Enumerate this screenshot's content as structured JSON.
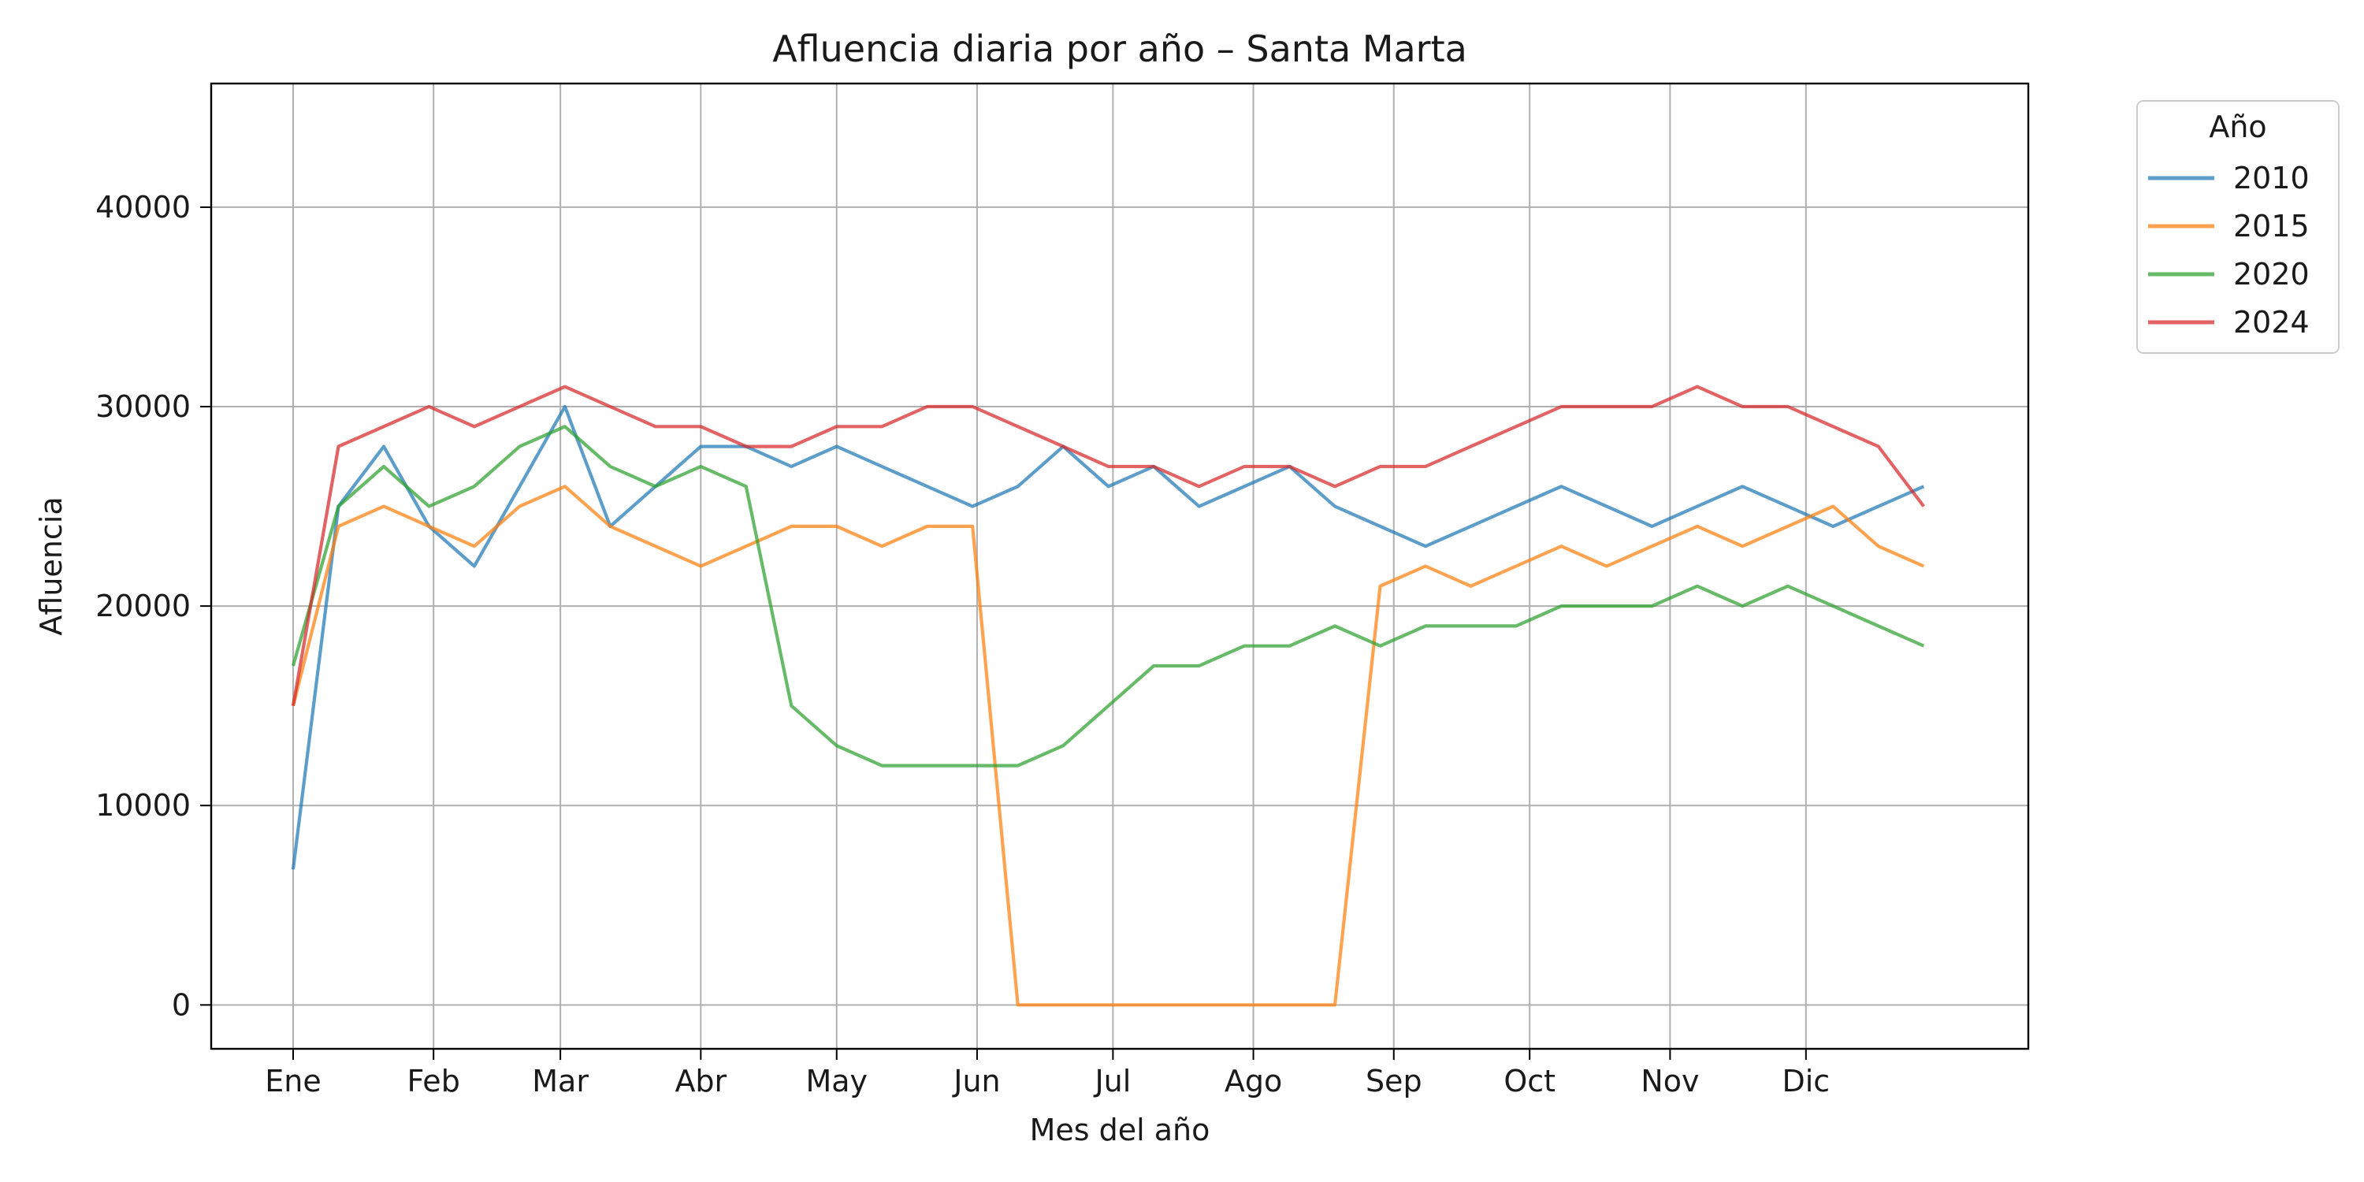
{
  "chart_data": {
    "type": "line",
    "title": "Afluencia diaria por año – Santa Marta",
    "xlabel": "Mes del año",
    "ylabel": "Afluencia",
    "x_range": [
      1,
      366
    ],
    "ylim": [
      -2200,
      46200
    ],
    "x_ticks": [
      {
        "label": "Ene",
        "day": 1
      },
      {
        "label": "Feb",
        "day": 32
      },
      {
        "label": "Mar",
        "day": 60
      },
      {
        "label": "Abr",
        "day": 91
      },
      {
        "label": "May",
        "day": 121
      },
      {
        "label": "Jun",
        "day": 152
      },
      {
        "label": "Jul",
        "day": 182
      },
      {
        "label": "Ago",
        "day": 213
      },
      {
        "label": "Sep",
        "day": 244
      },
      {
        "label": "Oct",
        "day": 274
      },
      {
        "label": "Nov",
        "day": 305
      },
      {
        "label": "Dic",
        "day": 335
      }
    ],
    "y_ticks": [
      0,
      10000,
      20000,
      30000,
      40000
    ],
    "grid": true,
    "legend": {
      "title": "Año",
      "placement": "outside-top-right"
    },
    "series": [
      {
        "name": "2010",
        "color": "#1f77b4",
        "x_step_days": 10,
        "values": [
          6800,
          25000,
          28000,
          24000,
          22000,
          26000,
          30000,
          24000,
          26000,
          28000,
          28000,
          27000,
          28000,
          27000,
          26000,
          25000,
          26000,
          28000,
          26000,
          27000,
          25000,
          26000,
          27000,
          25000,
          24000,
          23000,
          24000,
          25000,
          26000,
          25000,
          24000,
          25000,
          26000,
          25000,
          24000,
          25000,
          26000
        ]
      },
      {
        "name": "2015",
        "color": "#ff7f0e",
        "x_step_days": 10,
        "values": [
          15000,
          24000,
          25000,
          24000,
          23000,
          25000,
          26000,
          24000,
          23000,
          22000,
          23000,
          24000,
          24000,
          23000,
          24000,
          24000,
          0,
          0,
          0,
          0,
          0,
          0,
          0,
          0,
          21000,
          22000,
          21000,
          22000,
          23000,
          22000,
          23000,
          24000,
          23000,
          24000,
          25000,
          23000,
          22000
        ]
      },
      {
        "name": "2020",
        "color": "#2ca02c",
        "x_step_days": 10,
        "values": [
          17000,
          25000,
          27000,
          25000,
          26000,
          28000,
          29000,
          27000,
          26000,
          27000,
          26000,
          15000,
          13000,
          12000,
          12000,
          12000,
          12000,
          13000,
          15000,
          17000,
          17000,
          18000,
          18000,
          19000,
          18000,
          19000,
          19000,
          19000,
          20000,
          20000,
          20000,
          21000,
          20000,
          21000,
          20000,
          19000,
          18000
        ]
      },
      {
        "name": "2024",
        "color": "#d62728",
        "x_step_days": 10,
        "values": [
          15000,
          28000,
          29000,
          30000,
          29000,
          30000,
          31000,
          30000,
          29000,
          29000,
          28000,
          28000,
          29000,
          29000,
          30000,
          30000,
          29000,
          28000,
          27000,
          27000,
          26000,
          27000,
          27000,
          26000,
          27000,
          27000,
          28000,
          29000,
          30000,
          30000,
          30000,
          31000,
          30000,
          30000,
          29000,
          28000,
          25000
        ]
      }
    ]
  }
}
